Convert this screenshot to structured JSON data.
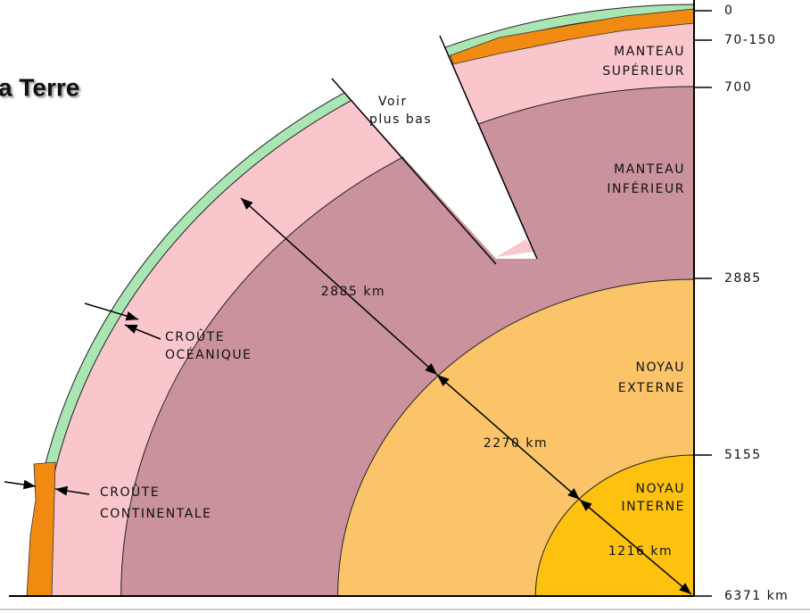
{
  "title": "a Terre",
  "depth_scale": [
    "0",
    "70-150",
    "700",
    "2885",
    "5155",
    "6371 km"
  ],
  "layers": [
    {
      "label": [
        "MANTEAU",
        "SUPÉRIEUR"
      ]
    },
    {
      "label": [
        "MANTEAU",
        "INFÉRIEUR"
      ]
    },
    {
      "label": [
        "NOYAU",
        "EXTERNE"
      ]
    },
    {
      "label": [
        "NOYAU",
        "INTERNE"
      ]
    },
    {
      "label": [
        "CROÛTE",
        "OCÉANIQUE"
      ]
    },
    {
      "label": [
        "CROÛTE",
        "CONTINENTALE"
      ]
    }
  ],
  "note": [
    "Voir",
    "plus bas"
  ],
  "thicknesses": [
    "2885 km",
    "2270 km",
    "1216 km"
  ]
}
